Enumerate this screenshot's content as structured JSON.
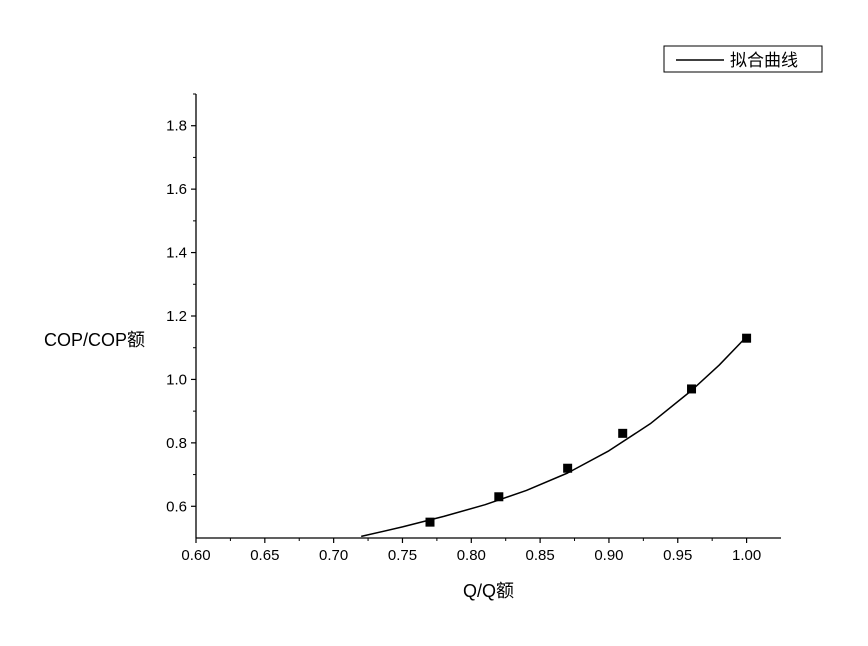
{
  "chart_data": {
    "type": "scatter",
    "xlabel": "Q/Q额",
    "ylabel": "COP/COP额",
    "xlim": [
      0.6,
      1.025
    ],
    "ylim": [
      0.5,
      1.9
    ],
    "x_ticks": [
      "0.60",
      "0.65",
      "0.70",
      "0.75",
      "0.80",
      "0.85",
      "0.90",
      "0.95",
      "1.00"
    ],
    "y_ticks": [
      "0.6",
      "0.8",
      "1.0",
      "1.2",
      "1.4",
      "1.6",
      "1.8"
    ],
    "legend": {
      "position": "top-right",
      "entries": [
        "拟合曲线"
      ]
    },
    "grid": false,
    "series": [
      {
        "marker": "square",
        "x": [
          0.77,
          0.82,
          0.87,
          0.91,
          0.96,
          1.0
        ],
        "y": [
          0.55,
          0.63,
          0.72,
          0.83,
          0.97,
          1.13
        ]
      },
      {
        "name": "拟合曲线",
        "style": "line",
        "x": [
          0.72,
          0.75,
          0.78,
          0.81,
          0.84,
          0.87,
          0.9,
          0.93,
          0.96,
          0.98,
          1.0
        ],
        "y": [
          0.505,
          0.535,
          0.568,
          0.605,
          0.65,
          0.705,
          0.775,
          0.86,
          0.965,
          1.045,
          1.135
        ]
      }
    ]
  }
}
